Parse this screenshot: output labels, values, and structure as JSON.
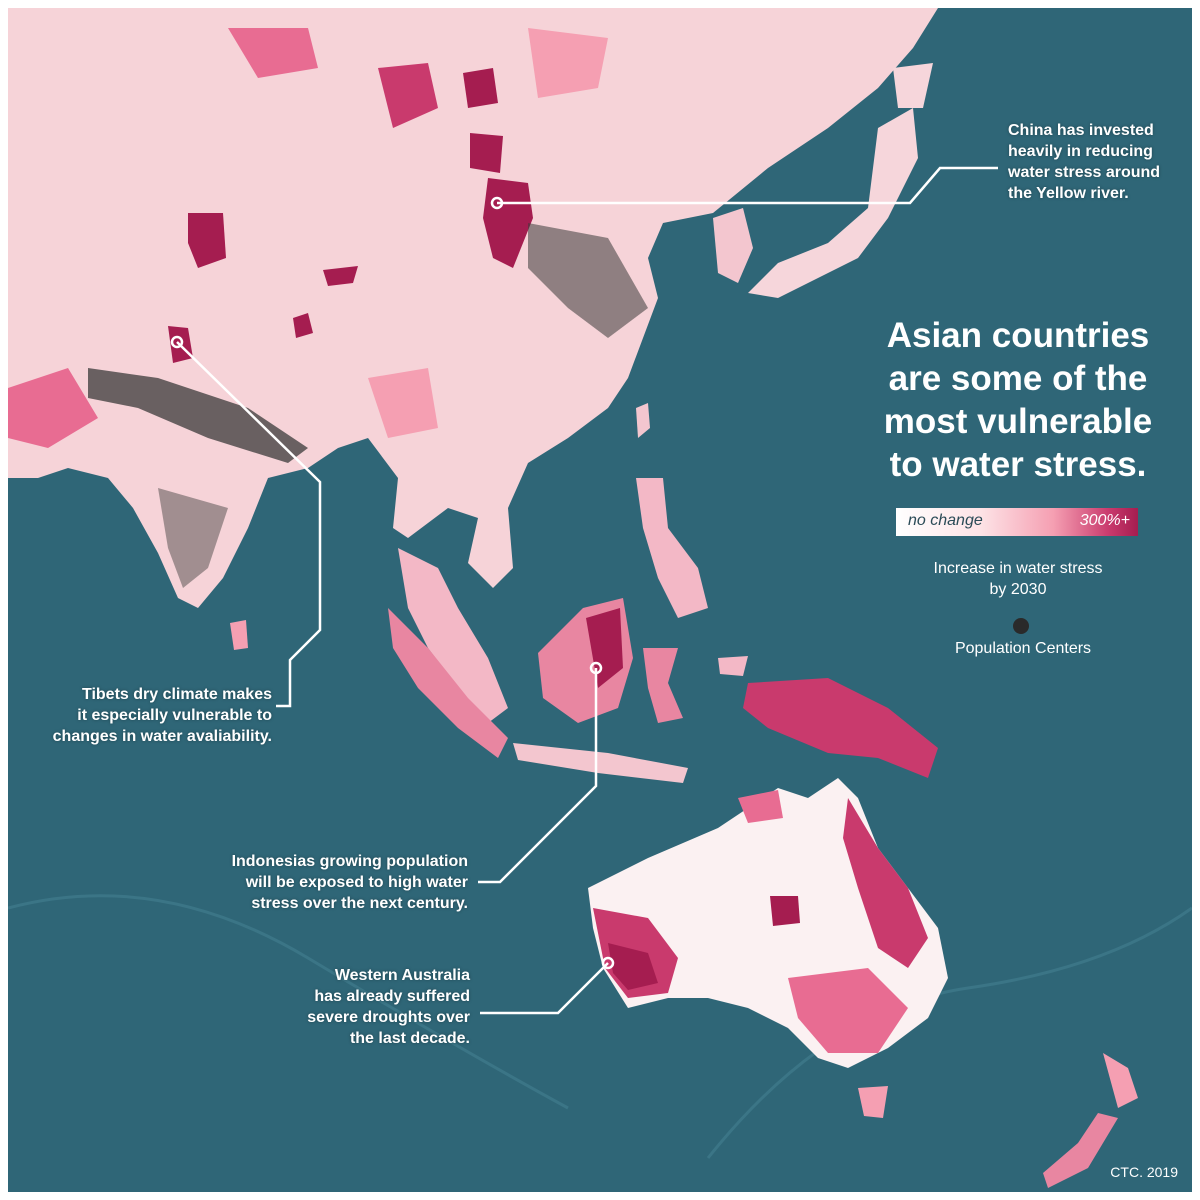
{
  "map": {
    "title_lines": [
      "Asian countries",
      "are some of the",
      "most vulnerable",
      "to water stress."
    ],
    "legend": {
      "min_label": "no change",
      "max_label": "300%+",
      "caption_lines": [
        "Increase in water stress",
        "by 2030"
      ],
      "population_label": "Population Centers",
      "colors": {
        "none": "#ffffff",
        "low": "#fde3e6",
        "mid": "#f59fb2",
        "high": "#c93a6d",
        "max": "#a51d50",
        "population": "#2a2a2a",
        "ocean": "#2f6677"
      }
    },
    "annotations": {
      "china": [
        "China has invested",
        "heavily in reducing",
        "water stress around",
        "the Yellow river."
      ],
      "tibet": [
        "Tibets dry climate makes",
        "it especially vulnerable to",
        "changes in water avaliability."
      ],
      "indonesia": [
        "Indonesias growing population",
        "will be exposed to high water",
        "stress over the next century."
      ],
      "australia": [
        "Western Australia",
        "has already suffered",
        "severe droughts over",
        "the last decade."
      ]
    },
    "credit": "CTC. 2019"
  }
}
